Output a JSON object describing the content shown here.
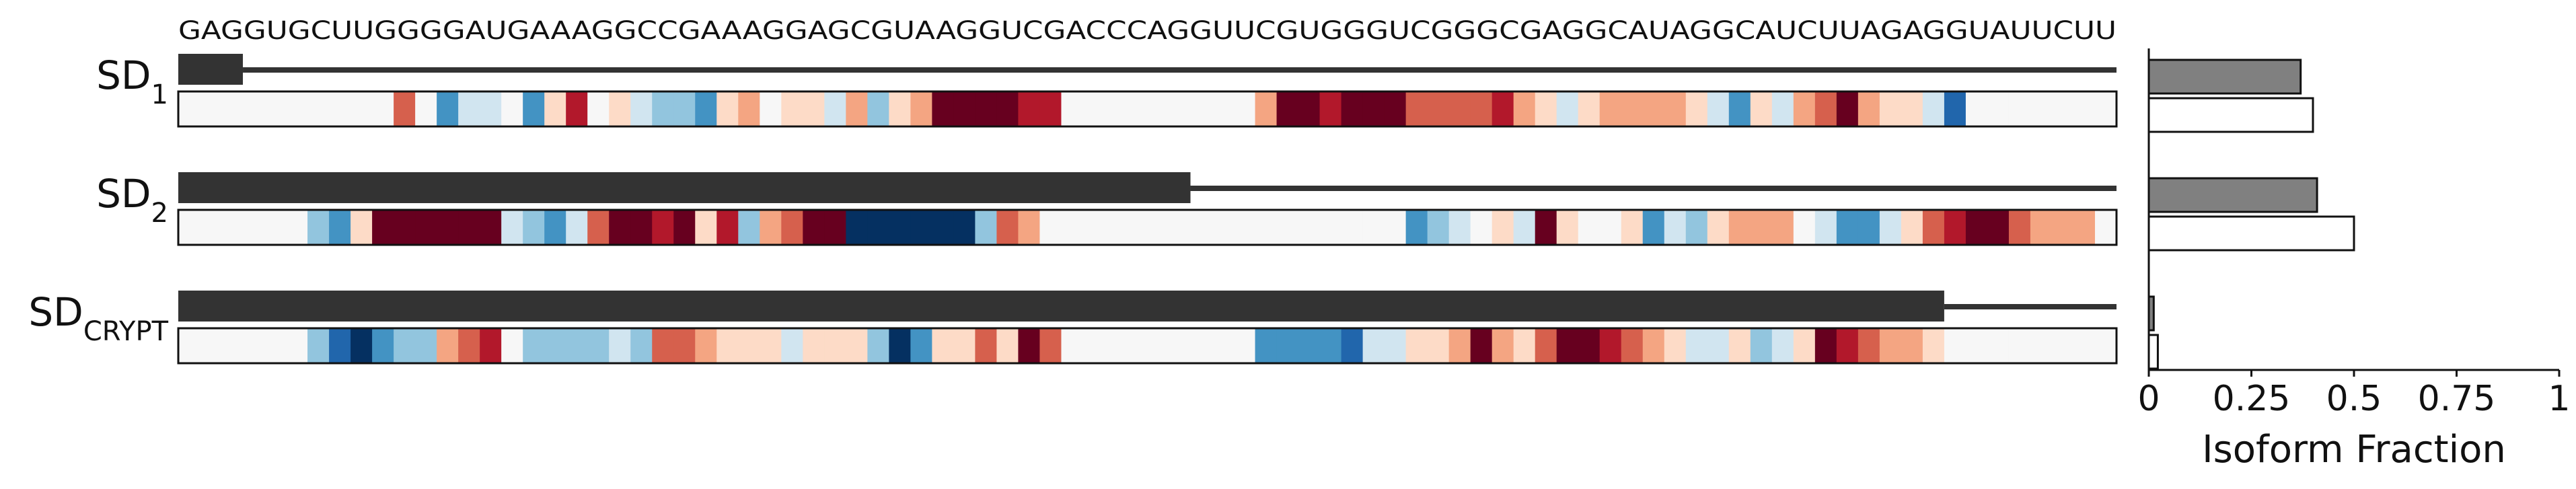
{
  "chart_data": {
    "type": "heatmap",
    "sequence": "GAGGUGCUUGGGGAUGAAAGGCCGAAAGGAGCGUAAGGUCGACCCAGGUUCGUGGGUCGGGCGAGGCAUAGGCAUCUUAGAGGUAUUCUU",
    "heatmap_palette": {
      "-3": "#053061",
      "-2": "#2166ac",
      "-1": "#4393c3",
      "-0.6": "#92c5de",
      "-0.3": "#d1e5f0",
      "0": "#f7f7f7",
      "0.3": "#fddbc7",
      "0.6": "#f4a582",
      "1": "#d6604d",
      "2": "#b2182b",
      "3": "#67001f"
    },
    "rows": [
      {
        "label_main": "SD",
        "label_sub": "1",
        "exon_end": 3,
        "scores": [
          0,
          0,
          0,
          0,
          0,
          0,
          0,
          0,
          0,
          0,
          1,
          0,
          -1,
          -0.3,
          -0.3,
          0,
          -1,
          0.3,
          2,
          0,
          0.3,
          -0.3,
          -0.6,
          -0.6,
          -1,
          0.3,
          0.6,
          0,
          0.3,
          0.3,
          -0.3,
          0.6,
          -0.6,
          0.3,
          0.6,
          3,
          3,
          3,
          3,
          2,
          2,
          0,
          0,
          0,
          0,
          0,
          0,
          0,
          0,
          0,
          0.6,
          3,
          3,
          2,
          3,
          3,
          3,
          1,
          1,
          1,
          1,
          2,
          0.6,
          0.3,
          -0.3,
          0.3,
          0.6,
          0.6,
          0.6,
          0.6,
          0.3,
          -0.3,
          -1,
          0.3,
          -0.3,
          0.6,
          1,
          3,
          0.6,
          0.3,
          0.3,
          -0.3,
          -2,
          0,
          0,
          0,
          0,
          0,
          0,
          0
        ]
      },
      {
        "label_main": "SD",
        "label_sub": "2",
        "exon_end": 47,
        "scores": [
          0,
          0,
          0,
          0,
          0,
          0,
          -0.6,
          -1,
          0.3,
          3,
          3,
          3,
          3,
          3,
          3,
          -0.3,
          -0.6,
          -1,
          -0.3,
          1,
          3,
          3,
          2,
          3,
          0.3,
          2,
          -0.6,
          0.6,
          1,
          3,
          3,
          -3,
          -3,
          -3,
          -3,
          -3,
          -3,
          -0.6,
          1,
          0.6,
          0,
          0,
          0,
          0,
          0,
          0,
          0,
          0,
          0,
          0,
          0,
          0,
          0,
          0,
          0,
          0,
          0,
          -1,
          -0.6,
          -0.3,
          0,
          0.3,
          -0.3,
          3,
          0.3,
          0,
          0,
          0.3,
          -1,
          -0.3,
          -0.6,
          0.3,
          0.6,
          0.6,
          0.6,
          0,
          -0.3,
          -1,
          -1,
          -0.3,
          0.3,
          1,
          2,
          3,
          3,
          1,
          0.6,
          0.6,
          0.6,
          0
        ]
      },
      {
        "label_main": "SD",
        "label_sub": "CRYPT",
        "exon_end": 82,
        "scores": [
          0,
          0,
          0,
          0,
          0,
          0,
          -0.6,
          -2,
          -3,
          -1,
          -0.6,
          -0.6,
          0.6,
          1,
          2,
          0,
          -0.6,
          -0.6,
          -0.6,
          -0.6,
          -0.3,
          -0.6,
          1,
          1,
          0.6,
          0.3,
          0.3,
          0.3,
          -0.3,
          0.3,
          0.3,
          0.3,
          -0.6,
          -3,
          -1,
          0.3,
          0.3,
          1,
          0.3,
          3,
          1,
          0,
          0,
          0,
          0,
          0,
          0,
          0,
          0,
          0,
          -1,
          -1,
          -1,
          -1,
          -2,
          -0.3,
          -0.3,
          0.3,
          0.3,
          0.6,
          3,
          0.6,
          0.3,
          1,
          3,
          3,
          2,
          1,
          0.6,
          0.3,
          -0.3,
          -0.3,
          0.3,
          -0.6,
          -0.3,
          0.3,
          3,
          2,
          1,
          0.6,
          0.6,
          0.3,
          0,
          0,
          0,
          0,
          0,
          0,
          0,
          0
        ]
      }
    ],
    "bars": {
      "xlabel": "Isoform Fraction",
      "xlim": [
        0,
        1
      ],
      "ticks": [
        "0",
        "0.25",
        "0.5",
        "0.75",
        "1"
      ],
      "tick_values": [
        0,
        0.25,
        0.5,
        0.75,
        1
      ],
      "values": [
        {
          "predicted": 0.37,
          "observed": 0.4
        },
        {
          "predicted": 0.41,
          "observed": 0.5
        },
        {
          "predicted": 0.012,
          "observed": 0.022
        }
      ],
      "predicted_color": "#808080",
      "observed_color": "#ffffff",
      "exon_color": "#333333"
    }
  }
}
